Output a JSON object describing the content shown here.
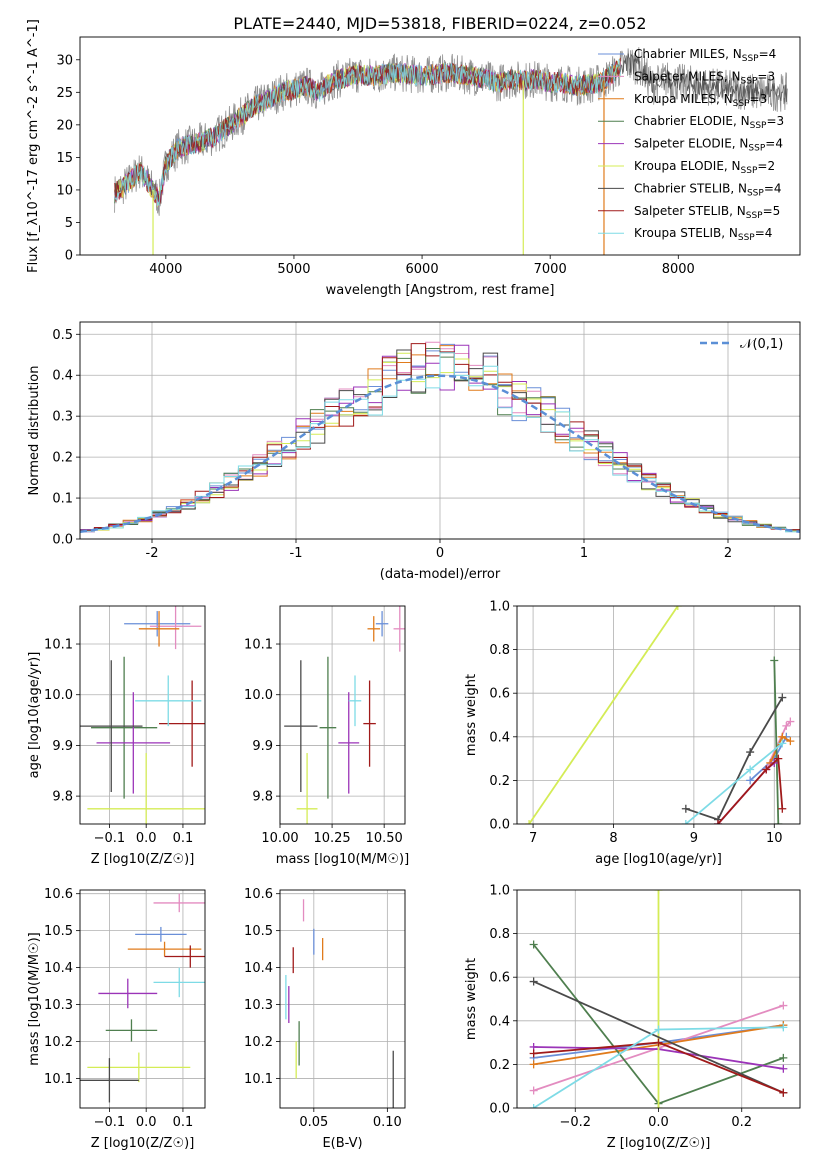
{
  "figure": {
    "title": "PLATE=2440, MJD=53818, FIBERID=0224, z=0.052"
  },
  "models": [
    {
      "name": "Chabrier MILES",
      "nssp": "4",
      "color": "#6a8fd8"
    },
    {
      "name": "Salpeter MILES",
      "nssp": "3",
      "color": "#e38cc0"
    },
    {
      "name": "Kroupa MILES",
      "nssp": "3",
      "color": "#e07b1c"
    },
    {
      "name": "Chabrier ELODIE",
      "nssp": "3",
      "color": "#4f7f4f"
    },
    {
      "name": "Salpeter ELODIE",
      "nssp": "4",
      "color": "#9b34b8"
    },
    {
      "name": "Kroupa ELODIE",
      "nssp": "2",
      "color": "#d4ec56"
    },
    {
      "name": "Chabrier STELIB",
      "nssp": "4",
      "color": "#4a4a4a"
    },
    {
      "name": "Salpeter STELIB",
      "nssp": "5",
      "color": "#a01a1a"
    },
    {
      "name": "Kroupa STELIB",
      "nssp": "4",
      "color": "#7edbe6"
    }
  ],
  "chart_data": [
    {
      "id": "spectrum",
      "type": "line",
      "xlabel": "wavelength [Angstrom, rest frame]",
      "ylabel": "Flux [f_λ10^-17 erg cm^-2 s^-1 A^-1]",
      "xlim": [
        3330,
        8950
      ],
      "ylim": [
        0,
        33.5
      ],
      "xticks": [
        4000,
        5000,
        6000,
        7000,
        8000
      ],
      "yticks": [
        0,
        5,
        10,
        15,
        20,
        25,
        30
      ],
      "grid": false,
      "legend": "right",
      "continuum_x": [
        3600,
        3700,
        3800,
        3900,
        3950,
        4000,
        4100,
        4200,
        4300,
        4400,
        4500,
        4600,
        4700,
        4800,
        4900,
        5000,
        5100,
        5200,
        5300,
        5400,
        5500,
        5600,
        5700,
        5800,
        5900,
        6000,
        6100,
        6200,
        6300,
        6400,
        6500,
        6600,
        6700,
        6800,
        6900,
        7000,
        7100,
        7200,
        7300,
        7400,
        7500,
        7600,
        7700,
        7800,
        7900,
        8000,
        8200,
        8400,
        8600,
        8800
      ],
      "continuum_y": [
        9.5,
        11,
        13,
        10,
        8.5,
        14,
        16.5,
        17,
        17.5,
        18.5,
        20,
        21.5,
        23,
        24,
        25,
        25.5,
        26,
        25,
        26.8,
        27.2,
        27.8,
        27.5,
        27.8,
        28,
        27.8,
        27.5,
        27.8,
        28,
        27.7,
        27.5,
        27,
        26.5,
        27,
        26.8,
        27,
        26.5,
        26.5,
        26,
        26.2,
        26.5,
        28,
        29.5,
        29,
        26,
        27,
        26.5,
        26,
        25.5,
        25,
        25
      ]
    },
    {
      "id": "residuals",
      "type": "histogram",
      "xlabel": "(data-model)/error",
      "ylabel": "Normed distribution",
      "xlim": [
        -2.5,
        2.5
      ],
      "ylim": [
        0,
        0.53
      ],
      "xticks": [
        -2,
        -1,
        0,
        1,
        2
      ],
      "yticks": [
        0.0,
        0.1,
        0.2,
        0.3,
        0.4,
        0.5
      ],
      "grid": true,
      "legend": "top-right",
      "legend_label": "𝒩(0,1)",
      "bin_width": 0.1,
      "gaussian": {
        "mean": 0,
        "sigma": 1
      }
    },
    {
      "id": "age-vs-Z",
      "type": "errorbar",
      "xlabel": "Z [log10(Z/Z☉)]",
      "ylabel": "age [log10(age/yr)]",
      "xlim": [
        -0.18,
        0.16
      ],
      "ylim": [
        9.745,
        10.175
      ],
      "xticks": [
        -0.1,
        0.0,
        0.1
      ],
      "xticklabels": [
        "−0.1",
        "0.0",
        "0.1"
      ],
      "yticks": [
        9.8,
        9.9,
        10.0,
        10.1
      ],
      "points": [
        {
          "x": 0.03,
          "xerr": 0.09,
          "y": 10.14,
          "yerr": 0.025
        },
        {
          "x": 0.08,
          "xerr": 0.07,
          "y": 10.135,
          "yerr": 0.045
        },
        {
          "x": 0.035,
          "xerr": 0.055,
          "y": 10.13,
          "yerr": 0.035
        },
        {
          "x": -0.06,
          "xerr": 0.09,
          "y": 9.935,
          "yerr": 0.14
        },
        {
          "x": -0.035,
          "xerr": 0.1,
          "y": 9.905,
          "yerr": 0.1
        },
        {
          "x": 0.0,
          "xerr": 0.16,
          "y": 9.775,
          "yerr": 0.11
        },
        {
          "x": -0.095,
          "xerr": 0.085,
          "y": 9.938,
          "yerr": 0.13
        },
        {
          "x": 0.125,
          "xerr": 0.09,
          "y": 9.943,
          "yerr": 0.085
        },
        {
          "x": 0.06,
          "xerr": 0.09,
          "y": 9.988,
          "yerr": 0.05
        }
      ]
    },
    {
      "id": "age-vs-mass",
      "type": "errorbar",
      "xlabel": "mass [log10(M/M☉)]",
      "xlim": [
        10.0,
        10.6
      ],
      "ylim": [
        9.745,
        10.175
      ],
      "xticks": [
        10.0,
        10.25,
        10.5
      ],
      "xticklabels": [
        "10.00",
        "10.25",
        "10.50"
      ],
      "yticks": [
        9.8,
        9.9,
        10.0,
        10.1
      ],
      "points": [
        {
          "x": 10.49,
          "xerr": 0.03,
          "y": 10.14,
          "yerr": 0.025
        },
        {
          "x": 10.575,
          "xerr": 0.03,
          "y": 10.13,
          "yerr": 0.045
        },
        {
          "x": 10.45,
          "xerr": 0.03,
          "y": 10.13,
          "yerr": 0.025
        },
        {
          "x": 10.23,
          "xerr": 0.04,
          "y": 9.935,
          "yerr": 0.14
        },
        {
          "x": 10.33,
          "xerr": 0.05,
          "y": 9.905,
          "yerr": 0.1
        },
        {
          "x": 10.13,
          "xerr": 0.05,
          "y": 9.775,
          "yerr": 0.11
        },
        {
          "x": 10.1,
          "xerr": 0.08,
          "y": 9.938,
          "yerr": 0.13
        },
        {
          "x": 10.43,
          "xerr": 0.03,
          "y": 9.943,
          "yerr": 0.085
        },
        {
          "x": 10.36,
          "xerr": 0.03,
          "y": 9.988,
          "yerr": 0.05
        }
      ]
    },
    {
      "id": "weight-vs-age",
      "type": "line",
      "xlabel": "age [log10(age/yr)]",
      "ylabel": "mass weight",
      "xlim": [
        6.8,
        10.32
      ],
      "ylim": [
        0,
        1.0
      ],
      "xticks": [
        7,
        8,
        9,
        10
      ],
      "yticks": [
        0.0,
        0.2,
        0.4,
        0.6,
        0.8,
        1.0
      ],
      "series": [
        {
          "x": [
            9.7,
            10.0,
            10.15
          ],
          "y": [
            0.2,
            0.3,
            0.4
          ]
        },
        {
          "x": [
            9.9,
            10.15,
            10.2
          ],
          "y": [
            0.25,
            0.45,
            0.47
          ]
        },
        {
          "x": [
            9.95,
            10.1,
            10.2
          ],
          "y": [
            0.28,
            0.4,
            0.38
          ]
        },
        {
          "x": [
            10.0,
            10.05
          ],
          "y": [
            0.75,
            0.0
          ]
        },
        {
          "x": [
            9.3,
            9.9,
            10.0
          ],
          "y": [
            0.0,
            0.25,
            0.28
          ]
        },
        {
          "x": [
            6.95,
            8.8
          ],
          "y": [
            0.0,
            1.0
          ]
        },
        {
          "x": [
            8.9,
            9.3,
            9.7,
            10.1
          ],
          "y": [
            0.07,
            0.02,
            0.33,
            0.58
          ]
        },
        {
          "x": [
            9.3,
            9.9,
            10.05,
            10.1
          ],
          "y": [
            0.0,
            0.25,
            0.3,
            0.07
          ]
        },
        {
          "x": [
            8.9,
            9.7,
            10.1
          ],
          "y": [
            0.0,
            0.25,
            0.37
          ]
        }
      ]
    },
    {
      "id": "mass-vs-Z",
      "type": "errorbar",
      "xlabel": "Z [log10(Z/Z☉)]",
      "ylabel": "mass [log10(M/M☉)]",
      "xlim": [
        -0.18,
        0.16
      ],
      "ylim": [
        10.02,
        10.61
      ],
      "xticks": [
        -0.1,
        0.0,
        0.1
      ],
      "xticklabels": [
        "−0.1",
        "0.0",
        "0.1"
      ],
      "yticks": [
        10.1,
        10.2,
        10.3,
        10.4,
        10.5,
        10.6
      ],
      "points": [
        {
          "x": 0.04,
          "xerr": 0.07,
          "y": 10.49,
          "yerr": 0.02
        },
        {
          "x": 0.09,
          "xerr": 0.07,
          "y": 10.575,
          "yerr": 0.025
        },
        {
          "x": 0.05,
          "xerr": 0.1,
          "y": 10.45,
          "yerr": 0.02
        },
        {
          "x": -0.04,
          "xerr": 0.07,
          "y": 10.23,
          "yerr": 0.03
        },
        {
          "x": -0.05,
          "xerr": 0.08,
          "y": 10.33,
          "yerr": 0.04
        },
        {
          "x": -0.02,
          "xerr": 0.14,
          "y": 10.13,
          "yerr": 0.04
        },
        {
          "x": -0.1,
          "xerr": 0.08,
          "y": 10.095,
          "yerr": 0.06
        },
        {
          "x": 0.12,
          "xerr": 0.07,
          "y": 10.43,
          "yerr": 0.03
        },
        {
          "x": 0.09,
          "xerr": 0.07,
          "y": 10.36,
          "yerr": 0.04
        }
      ]
    },
    {
      "id": "mass-vs-EBV",
      "type": "errorbar",
      "xlabel": "E(B-V)",
      "xlim": [
        0.027,
        0.112
      ],
      "ylim": [
        10.02,
        10.61
      ],
      "xticks": [
        0.05,
        0.1
      ],
      "xticklabels": [
        "0.05",
        "0.10"
      ],
      "yticks": [
        10.1,
        10.2,
        10.3,
        10.4,
        10.5,
        10.6
      ],
      "points": [
        {
          "x": 0.05,
          "xerr": 0,
          "y": 10.47,
          "yerr": 0.035
        },
        {
          "x": 0.043,
          "xerr": 0,
          "y": 10.555,
          "yerr": 0.03
        },
        {
          "x": 0.056,
          "xerr": 0,
          "y": 10.45,
          "yerr": 0.03
        },
        {
          "x": 0.04,
          "xerr": 0,
          "y": 10.195,
          "yerr": 0.06
        },
        {
          "x": 0.033,
          "xerr": 0,
          "y": 10.3,
          "yerr": 0.05
        },
        {
          "x": 0.038,
          "xerr": 0,
          "y": 10.15,
          "yerr": 0.05
        },
        {
          "x": 0.104,
          "xerr": 0,
          "y": 10.095,
          "yerr": 0.08
        },
        {
          "x": 0.036,
          "xerr": 0,
          "y": 10.42,
          "yerr": 0.035
        },
        {
          "x": 0.031,
          "xerr": 0,
          "y": 10.32,
          "yerr": 0.06
        }
      ]
    },
    {
      "id": "weight-vs-Z",
      "type": "line",
      "xlabel": "Z [log10(Z/Z☉)]",
      "ylabel": "mass weight",
      "xlim": [
        -0.34,
        0.34
      ],
      "ylim": [
        0,
        1.0
      ],
      "xticks": [
        -0.2,
        0.0,
        0.2
      ],
      "xticklabels": [
        "−0.2",
        "0.0",
        "0.2"
      ],
      "yticks": [
        0.0,
        0.2,
        0.4,
        0.6,
        0.8,
        1.0
      ],
      "series": [
        {
          "x": [
            -0.3,
            0.0,
            0.3
          ],
          "y": [
            0.23,
            0.3,
            0.38
          ]
        },
        {
          "x": [
            -0.3,
            0.3
          ],
          "y": [
            0.08,
            0.47
          ]
        },
        {
          "x": [
            -0.3,
            0.3
          ],
          "y": [
            0.2,
            0.38
          ]
        },
        {
          "x": [
            -0.3,
            0.0,
            0.3
          ],
          "y": [
            0.75,
            0.02,
            0.23
          ]
        },
        {
          "x": [
            -0.3,
            0.0,
            0.3
          ],
          "y": [
            0.28,
            0.27,
            0.18
          ]
        },
        {
          "x": [
            0.0,
            0.0
          ],
          "y": [
            0.0,
            1.0
          ]
        },
        {
          "x": [
            -0.3,
            0.3
          ],
          "y": [
            0.58,
            0.07
          ]
        },
        {
          "x": [
            -0.3,
            0.0,
            0.3
          ],
          "y": [
            0.25,
            0.3,
            0.07
          ]
        },
        {
          "x": [
            -0.3,
            0.0,
            0.3
          ],
          "y": [
            0.0,
            0.36,
            0.37
          ]
        }
      ]
    }
  ]
}
